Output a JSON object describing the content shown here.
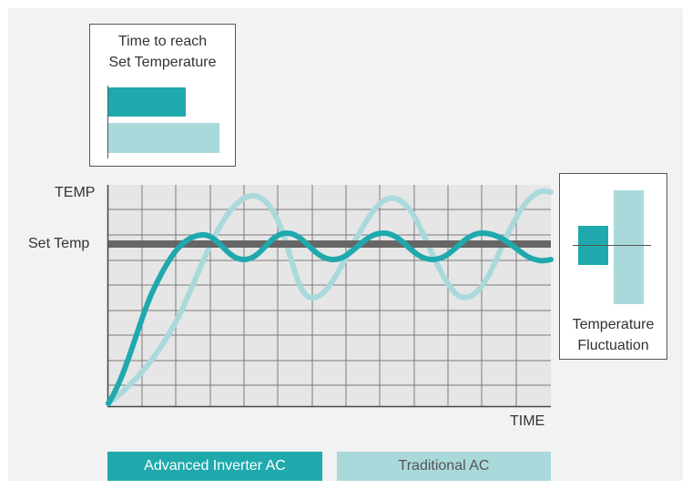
{
  "time_box": {
    "title_line1": "Time to reach",
    "title_line2": "Set Temperature",
    "bars": [
      {
        "series": "Advanced Inverter AC",
        "fraction": 0.7
      },
      {
        "series": "Traditional AC",
        "fraction": 1.0
      }
    ]
  },
  "fluct_box": {
    "title_line1": "Temperature",
    "title_line2": "Fluctuation",
    "bars": [
      {
        "series": "Advanced Inverter AC",
        "relative_range": 0.34
      },
      {
        "series": "Traditional AC",
        "relative_range": 1.0
      }
    ]
  },
  "chart": {
    "y_axis_label": "TEMP",
    "x_axis_label": "TIME",
    "set_temp_label": "Set Temp"
  },
  "legend": [
    {
      "label": "Advanced Inverter AC",
      "color": "#1fa9ad"
    },
    {
      "label": "Traditional AC",
      "color": "#aad9dc"
    }
  ],
  "colors": {
    "inverter": "#1fa9ad",
    "traditional": "#aad9dc",
    "set_temp_line": "#666666",
    "grid": "#7a7a7a",
    "plot_bg": "#e6e6e6"
  }
}
